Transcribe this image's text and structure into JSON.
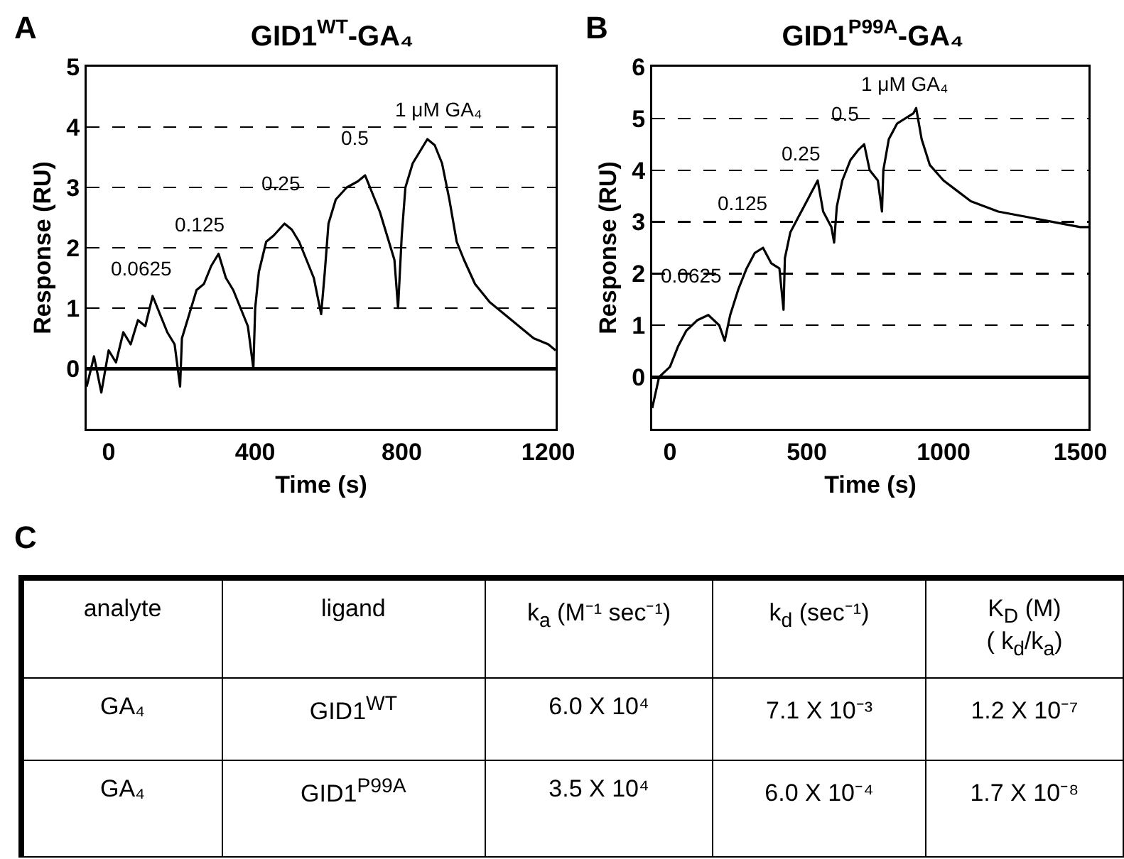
{
  "chart_data": [
    {
      "type": "line",
      "title": "GID1$^{WT}$-GA₄",
      "xlabel": "Time (s)",
      "ylabel": "Response (RU)",
      "xlim": [
        -60,
        1220
      ],
      "xticks": [
        0,
        400,
        800,
        1200
      ],
      "ylim": [
        -1,
        5
      ],
      "yticks": [
        0,
        1,
        2,
        3,
        4,
        5
      ],
      "grid": "y",
      "marker": "none",
      "line_style": "solid",
      "annotations": [
        "A",
        "0.0625",
        "0.125",
        "0.25",
        "0.5",
        "1 μM GA₄"
      ],
      "series": [
        {
          "color": "#000000",
          "x": [
            -60,
            -40,
            -20,
            0,
            20,
            40,
            60,
            80,
            100,
            120,
            140,
            160,
            180,
            195,
            200,
            220,
            240,
            260,
            280,
            300,
            320,
            340,
            360,
            380,
            395,
            400,
            410,
            430,
            450,
            480,
            500,
            520,
            540,
            560,
            580,
            590,
            600,
            620,
            650,
            680,
            700,
            720,
            740,
            760,
            780,
            790,
            800,
            810,
            830,
            850,
            870,
            890,
            910,
            930,
            950,
            970,
            1000,
            1040,
            1080,
            1120,
            1160,
            1200,
            1220
          ],
          "values": [
            -0.3,
            0.2,
            -0.4,
            0.3,
            0.1,
            0.6,
            0.4,
            0.8,
            0.7,
            1.2,
            0.9,
            0.6,
            0.4,
            -0.3,
            0.5,
            0.9,
            1.3,
            1.4,
            1.7,
            1.9,
            1.5,
            1.3,
            1.0,
            0.7,
            0.0,
            1.0,
            1.6,
            2.1,
            2.2,
            2.4,
            2.3,
            2.1,
            1.8,
            1.5,
            0.9,
            1.6,
            2.4,
            2.8,
            3.0,
            3.1,
            3.2,
            2.9,
            2.6,
            2.2,
            1.8,
            1.0,
            2.2,
            3.0,
            3.4,
            3.6,
            3.8,
            3.7,
            3.4,
            2.8,
            2.1,
            1.8,
            1.4,
            1.1,
            0.9,
            0.7,
            0.5,
            0.4,
            0.3
          ]
        }
      ]
    },
    {
      "type": "line",
      "title": "GID1$^{P99A}$-GA₄",
      "xlabel": "Time (s)",
      "ylabel": "Response (RU)",
      "xlim": [
        -65,
        1530
      ],
      "xticks": [
        0,
        500,
        1000,
        1500
      ],
      "ylim": [
        -1,
        6
      ],
      "yticks": [
        0,
        1,
        2,
        3,
        4,
        5,
        6
      ],
      "grid": "y",
      "marker": "none",
      "line_style": "solid",
      "annotations": [
        "B",
        "0.0625",
        "0.125",
        "0.25",
        "0.5",
        "1 μM GA₄"
      ],
      "series": [
        {
          "color": "#000000",
          "x": [
            -65,
            -40,
            -20,
            0,
            30,
            60,
            100,
            140,
            180,
            200,
            220,
            250,
            280,
            310,
            340,
            370,
            400,
            415,
            420,
            440,
            470,
            500,
            520,
            540,
            560,
            590,
            600,
            610,
            630,
            660,
            690,
            710,
            730,
            760,
            775,
            780,
            800,
            830,
            860,
            890,
            900,
            920,
            950,
            1000,
            1050,
            1100,
            1150,
            1200,
            1300,
            1400,
            1500,
            1530
          ],
          "values": [
            -0.6,
            0,
            0.1,
            0.2,
            0.6,
            0.9,
            1.1,
            1.2,
            1.0,
            0.7,
            1.2,
            1.7,
            2.1,
            2.4,
            2.5,
            2.2,
            2.1,
            1.3,
            2.3,
            2.8,
            3.1,
            3.4,
            3.6,
            3.8,
            3.2,
            2.9,
            2.6,
            3.3,
            3.8,
            4.2,
            4.4,
            4.5,
            4.0,
            3.8,
            3.2,
            4.0,
            4.6,
            4.9,
            5.0,
            5.1,
            5.2,
            4.6,
            4.1,
            3.8,
            3.6,
            3.4,
            3.3,
            3.2,
            3.1,
            3.0,
            2.9,
            2.9
          ]
        }
      ]
    },
    {
      "type": "other",
      "annotations": [
        "C",
        "analyte",
        "ligand",
        "k$_{a}$ (M⁻¹ sec⁻¹)",
        "k$_{d}$ (sec⁻¹)",
        "K$_{D}$ (M)\n( k$_{d}$/k$_{a}$)",
        "GA₄",
        "GID1$^{WT}$",
        "6.0 X 10⁴",
        "7.1 X 10⁻³",
        "1.2 X 10⁻⁷",
        "GA₄",
        "GID1$^{P99A}$",
        "3.5 X 10⁴",
        "6.0 X 10⁻⁴",
        "1.7 X 10⁻⁸"
      ]
    }
  ]
}
